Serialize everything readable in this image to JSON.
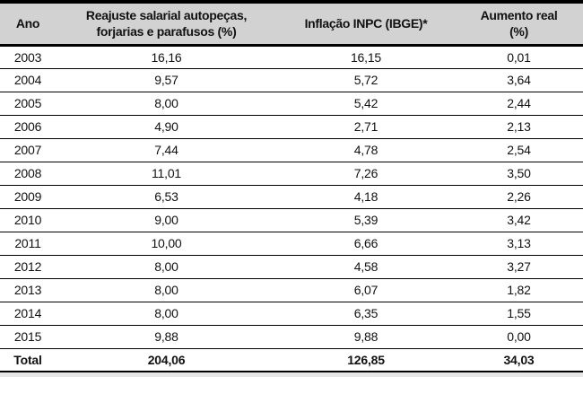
{
  "colors": {
    "header_bg": "#d2d2d2",
    "border": "#000000",
    "text": "#111111",
    "footer_strip": "#e6e6e6",
    "row_bg": "#ffffff"
  },
  "table": {
    "headers": [
      {
        "lines": [
          "Ano"
        ]
      },
      {
        "lines": [
          "Reajuste salarial autopeças,",
          "forjarias e parafusos (%)"
        ]
      },
      {
        "lines": [
          "Inflação INPC (IBGE)*"
        ]
      },
      {
        "lines": [
          "Aumento real",
          "(%)"
        ]
      }
    ],
    "total_label": "Total",
    "rows": [
      {
        "ano": "2003",
        "reajuste": "16,16",
        "inflacao": "16,15",
        "aumento": "0,01"
      },
      {
        "ano": "2004",
        "reajuste": "9,57",
        "inflacao": "5,72",
        "aumento": "3,64"
      },
      {
        "ano": "2005",
        "reajuste": "8,00",
        "inflacao": "5,42",
        "aumento": "2,44"
      },
      {
        "ano": "2006",
        "reajuste": "4,90",
        "inflacao": "2,71",
        "aumento": "2,13"
      },
      {
        "ano": "2007",
        "reajuste": "7,44",
        "inflacao": "4,78",
        "aumento": "2,54"
      },
      {
        "ano": "2008",
        "reajuste": "11,01",
        "inflacao": "7,26",
        "aumento": "3,50"
      },
      {
        "ano": "2009",
        "reajuste": "6,53",
        "inflacao": "4,18",
        "aumento": "2,26"
      },
      {
        "ano": "2010",
        "reajuste": "9,00",
        "inflacao": "5,39",
        "aumento": "3,42"
      },
      {
        "ano": "2011",
        "reajuste": "10,00",
        "inflacao": "6,66",
        "aumento": "3,13"
      },
      {
        "ano": "2012",
        "reajuste": "8,00",
        "inflacao": "4,58",
        "aumento": "3,27"
      },
      {
        "ano": "2013",
        "reajuste": "8,00",
        "inflacao": "6,07",
        "aumento": "1,82"
      },
      {
        "ano": "2014",
        "reajuste": "8,00",
        "inflacao": "6,35",
        "aumento": "1,55"
      },
      {
        "ano": "2015",
        "reajuste": "9,88",
        "inflacao": "9,88",
        "aumento": "0,00"
      },
      {
        "ano": "Total",
        "reajuste": "204,06",
        "inflacao": "126,85",
        "aumento": "34,03"
      }
    ]
  },
  "chart_data": {
    "type": "table",
    "columns": [
      "Ano",
      "Reajuste salarial autopeças, forjarias e parafusos (%)",
      "Inflação INPC (IBGE)*",
      "Aumento real (%)"
    ],
    "rows": [
      [
        "2003",
        16.16,
        16.15,
        0.01
      ],
      [
        "2004",
        9.57,
        5.72,
        3.64
      ],
      [
        "2005",
        8.0,
        5.42,
        2.44
      ],
      [
        "2006",
        4.9,
        2.71,
        2.13
      ],
      [
        "2007",
        7.44,
        4.78,
        2.54
      ],
      [
        "2008",
        11.01,
        7.26,
        3.5
      ],
      [
        "2009",
        6.53,
        4.18,
        2.26
      ],
      [
        "2010",
        9.0,
        5.39,
        3.42
      ],
      [
        "2011",
        10.0,
        6.66,
        3.13
      ],
      [
        "2012",
        8.0,
        4.58,
        3.27
      ],
      [
        "2013",
        8.0,
        6.07,
        1.82
      ],
      [
        "2014",
        8.0,
        6.35,
        1.55
      ],
      [
        "2015",
        9.88,
        9.88,
        0.0
      ],
      [
        "Total",
        204.06,
        126.85,
        34.03
      ]
    ]
  }
}
